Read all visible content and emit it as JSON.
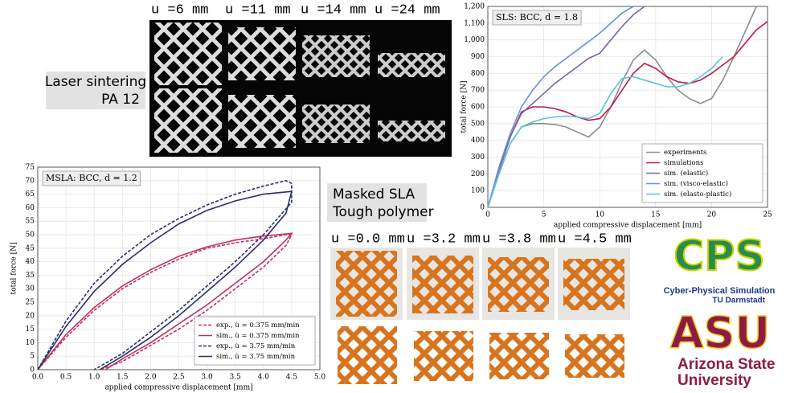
{
  "labels": {
    "sls_material": [
      "Laser sintering",
      "PA 12"
    ],
    "sls_states": [
      "u =6 mm",
      "u =11 mm",
      "u =14 mm",
      "u =24 mm"
    ],
    "msla_material": [
      "Masked SLA",
      "Tough polymer"
    ],
    "msla_states": [
      "u =0.0 mm",
      "u =3.2 mm",
      "u =3.8 mm",
      "u =4.5 mm"
    ],
    "cps_logo": {
      "mark": "CPS",
      "line1": "Cyber-Physical Simulation",
      "line2": "TU Darmstadt"
    },
    "asu_logo": {
      "mark": "ASU",
      "line1": "Arizona State",
      "line2": "University"
    }
  },
  "chart_data": [
    {
      "type": "line",
      "annotation": "SLS: BCC, d = 1.8",
      "xlabel": "applied compressive displacement [mm]",
      "ylabel": "total force [N]",
      "xlim": [
        0,
        25
      ],
      "ylim": [
        0,
        1200
      ],
      "xticks": [
        0,
        5,
        10,
        15,
        20,
        25
      ],
      "yticks": [
        0,
        100,
        200,
        300,
        400,
        500,
        600,
        700,
        800,
        900,
        {
          "value": 1000,
          "label": "1,000"
        },
        {
          "value": 1100,
          "label": "1,100"
        },
        {
          "value": 1200,
          "label": "1,200"
        }
      ],
      "grid": true,
      "legend": "lower right",
      "series": [
        {
          "name": "experiments",
          "color": "#8c8c8c",
          "linestyle": "solid",
          "x": [
            0,
            1,
            2,
            3,
            4,
            5,
            6,
            7,
            8,
            9,
            10,
            11,
            12,
            13,
            14,
            15,
            16,
            17,
            18,
            19,
            20,
            21,
            22,
            23,
            24
          ],
          "values": [
            0,
            200,
            380,
            480,
            500,
            500,
            495,
            480,
            450,
            420,
            480,
            600,
            750,
            880,
            940,
            880,
            780,
            700,
            650,
            620,
            650,
            760,
            900,
            1050,
            1200
          ]
        },
        {
          "name": "simulations",
          "color": "#c0184f",
          "linestyle": "solid",
          "x": [
            0,
            1,
            2,
            3,
            4,
            5,
            6,
            7,
            8,
            9,
            10,
            11,
            12,
            13,
            14,
            15,
            16,
            17,
            18,
            19,
            20,
            21,
            22,
            23,
            24,
            25
          ],
          "values": [
            0,
            220,
            420,
            570,
            600,
            600,
            590,
            570,
            540,
            520,
            530,
            600,
            700,
            800,
            860,
            830,
            780,
            750,
            740,
            760,
            800,
            850,
            900,
            980,
            1060,
            1110
          ]
        },
        {
          "name": "sim. (elastic)",
          "color": "#7468a0",
          "linestyle": "solid",
          "x": [
            0,
            1,
            2,
            3,
            4,
            5,
            6,
            7,
            8,
            9,
            10,
            11,
            12,
            13,
            14
          ],
          "values": [
            0,
            220,
            420,
            560,
            620,
            680,
            740,
            790,
            840,
            890,
            920,
            1000,
            1080,
            1150,
            1200
          ]
        },
        {
          "name": "sim. (visco-elastic)",
          "color": "#6a8fdc",
          "linestyle": "solid",
          "x": [
            0,
            1,
            2,
            3,
            4,
            5,
            6,
            7,
            8,
            9,
            10,
            11,
            12,
            13
          ],
          "values": [
            0,
            240,
            440,
            600,
            700,
            780,
            840,
            890,
            940,
            990,
            1040,
            1100,
            1160,
            1200
          ]
        },
        {
          "name": "sim. (elasto-plastic)",
          "color": "#5cc3d8",
          "linestyle": "solid",
          "x": [
            0,
            1,
            2,
            3,
            4,
            5,
            6,
            7,
            8,
            9,
            10,
            11,
            12,
            13,
            14,
            15,
            16,
            17,
            18,
            19,
            20,
            21
          ],
          "values": [
            0,
            200,
            380,
            480,
            510,
            530,
            540,
            545,
            540,
            530,
            560,
            680,
            770,
            780,
            760,
            740,
            720,
            720,
            740,
            780,
            830,
            900
          ]
        }
      ]
    },
    {
      "type": "line",
      "annotation": "MSLA: BCC, d = 1.2",
      "xlabel": "applied compressive displacement [mm]",
      "ylabel": "total force [N]",
      "xlim": [
        0,
        5
      ],
      "ylim": [
        0,
        75
      ],
      "xticks": [
        {
          "value": 0,
          "label": "0.0"
        },
        0.5,
        {
          "value": 1,
          "label": "1.0"
        },
        1.5,
        {
          "value": 2,
          "label": "2.0"
        },
        2.5,
        {
          "value": 3,
          "label": "3.0"
        },
        3.5,
        {
          "value": 4,
          "label": "4.0"
        },
        4.5,
        {
          "value": 5,
          "label": "5.0"
        }
      ],
      "yticks": [
        0,
        5,
        10,
        15,
        20,
        25,
        30,
        35,
        40,
        45,
        50,
        55,
        60,
        65,
        70,
        75
      ],
      "grid": true,
      "legend": "lower right",
      "series": [
        {
          "name": "exp., u̇ = 0.375 mm/min",
          "color": "#c0305f",
          "linestyle": "dashed",
          "x": [
            0,
            0.5,
            1,
            1.5,
            2,
            2.5,
            3,
            3.5,
            4,
            4.4,
            4.5,
            4.4,
            4,
            3.5,
            3,
            2.5,
            2,
            1.5,
            1.1
          ],
          "values": [
            0,
            12,
            22,
            30,
            36,
            41,
            45,
            47,
            48.5,
            50,
            50,
            46,
            38,
            30,
            22,
            15,
            9,
            3,
            0
          ]
        },
        {
          "name": "sim., u̇ = 0.375 mm/min",
          "color": "#c0305f",
          "linestyle": "solid",
          "x": [
            0,
            0.5,
            1,
            1.5,
            2,
            2.5,
            3,
            3.5,
            4,
            4.5,
            4.4,
            4,
            3.5,
            3,
            2.5,
            2,
            1.5,
            1.2
          ],
          "values": [
            0,
            13,
            23,
            31,
            37,
            42,
            45.5,
            48,
            49.5,
            50.5,
            48,
            40,
            32,
            24,
            17,
            10,
            4,
            0
          ]
        },
        {
          "name": "exp., u̇ = 3.75 mm/min",
          "color": "#2a2f6e",
          "linestyle": "dashed",
          "x": [
            0,
            0.5,
            1,
            1.5,
            2,
            2.5,
            3,
            3.5,
            4,
            4.4,
            4.5,
            4.5,
            4,
            3.5,
            3,
            2.5,
            2,
            1.5,
            1.0
          ],
          "values": [
            0,
            18,
            32,
            42,
            50,
            56,
            61,
            65,
            68,
            70,
            69,
            62,
            50,
            40,
            31,
            22,
            14,
            6,
            0
          ]
        },
        {
          "name": "sim., u̇ = 3.75 mm/min",
          "color": "#2a2f6e",
          "linestyle": "solid",
          "x": [
            0,
            0.5,
            1,
            1.5,
            2,
            2.5,
            3,
            3.5,
            4,
            4.5,
            4.4,
            4,
            3.5,
            3,
            2.5,
            2,
            1.5,
            1.1
          ],
          "values": [
            0,
            16,
            29,
            39,
            47,
            54,
            59,
            62.5,
            65,
            66,
            58,
            48,
            38,
            29,
            20,
            12,
            5,
            0
          ]
        }
      ]
    }
  ]
}
